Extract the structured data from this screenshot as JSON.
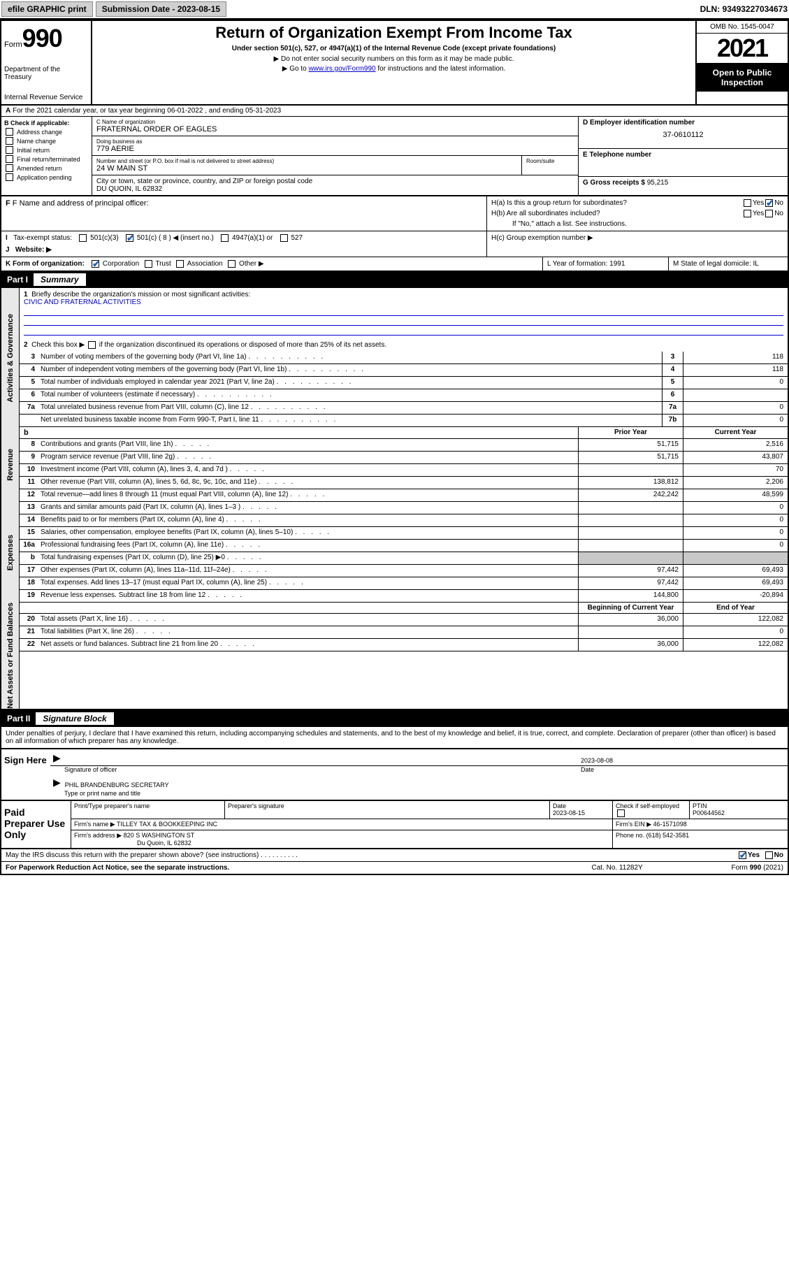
{
  "topbar": {
    "efile": "efile GRAPHIC print",
    "sub_label": "Submission Date - 2023-08-15",
    "dln_label": "DLN: 93493227034673"
  },
  "header": {
    "form_word": "Form",
    "form_num": "990",
    "dept": "Department of the Treasury",
    "irs": "Internal Revenue Service",
    "title": "Return of Organization Exempt From Income Tax",
    "subtitle": "Under section 501(c), 527, or 4947(a)(1) of the Internal Revenue Code (except private foundations)",
    "note1": "▶ Do not enter social security numbers on this form as it may be made public.",
    "note2_pre": "▶ Go to ",
    "note2_link": "www.irs.gov/Form990",
    "note2_post": " for instructions and the latest information.",
    "omb": "OMB No. 1545-0047",
    "year": "2021",
    "open": "Open to Public Inspection"
  },
  "row_a": "For the 2021 calendar year, or tax year beginning 06-01-2022    , and ending 05-31-2023",
  "section_b": {
    "label": "B Check if applicable:",
    "items": [
      "Address change",
      "Name change",
      "Initial return",
      "Final return/terminated",
      "Amended return",
      "Application pending"
    ]
  },
  "section_c": {
    "name_lab": "C Name of organization",
    "name": "FRATERNAL ORDER OF EAGLES",
    "dba_lab": "Doing business as",
    "dba": "779 AERIE",
    "street_lab": "Number and street (or P.O. box if mail is not delivered to street address)",
    "room_lab": "Room/suite",
    "street": "24 W MAIN ST",
    "city_lab": "City or town, state or province, country, and ZIP or foreign postal code",
    "city": "DU QUOIN, IL  62832"
  },
  "section_d": {
    "lab": "D Employer identification number",
    "val": "37-0610112"
  },
  "section_e": {
    "lab": "E Telephone number",
    "val": ""
  },
  "section_g": {
    "lab": "G Gross receipts $",
    "val": "95,215"
  },
  "section_f": {
    "lab": "F  Name and address of principal officer:",
    "val": ""
  },
  "section_h": {
    "ha": "H(a)  Is this a group return for subordinates?",
    "hb": "H(b)  Are all subordinates included?",
    "hb_note": "If \"No,\" attach a list. See instructions.",
    "hc": "H(c)  Group exemption number ▶",
    "yes": "Yes",
    "no": "No"
  },
  "tax_status": {
    "lab": "Tax-exempt status:",
    "o1": "501(c)(3)",
    "o2": "501(c) ( 8 ) ◀ (insert no.)",
    "o3": "4947(a)(1) or",
    "o4": "527"
  },
  "website": {
    "lab": "Website: ▶",
    "val": ""
  },
  "section_k": {
    "lab": "K Form of organization:",
    "o1": "Corporation",
    "o2": "Trust",
    "o3": "Association",
    "o4": "Other ▶"
  },
  "section_l": {
    "lab": "L Year of formation: 1991"
  },
  "section_m": {
    "lab": "M State of legal domicile: IL"
  },
  "part1": {
    "num": "Part I",
    "title": "Summary"
  },
  "side_labels": {
    "gov": "Activities & Governance",
    "rev": "Revenue",
    "exp": "Expenses",
    "net": "Net Assets or Fund Balances"
  },
  "q1": {
    "n": "1",
    "lab": "Briefly describe the organization's mission or most significant activities:",
    "val": "CIVIC AND FRATERNAL ACTIVITIES"
  },
  "q2": {
    "n": "2",
    "lab": "Check this box ▶",
    "post": " if the organization discontinued its operations or disposed of more than 25% of its net assets."
  },
  "lines_gov": [
    {
      "n": "3",
      "d": "Number of voting members of the governing body (Part VI, line 1a)",
      "box": "3",
      "v": "118"
    },
    {
      "n": "4",
      "d": "Number of independent voting members of the governing body (Part VI, line 1b)",
      "box": "4",
      "v": "118"
    },
    {
      "n": "5",
      "d": "Total number of individuals employed in calendar year 2021 (Part V, line 2a)",
      "box": "5",
      "v": "0"
    },
    {
      "n": "6",
      "d": "Total number of volunteers (estimate if necessary)",
      "box": "6",
      "v": ""
    },
    {
      "n": "7a",
      "d": "Total unrelated business revenue from Part VIII, column (C), line 12",
      "box": "7a",
      "v": "0"
    },
    {
      "n": "",
      "d": "Net unrelated business taxable income from Form 990-T, Part I, line 11",
      "box": "7b",
      "v": "0"
    }
  ],
  "col_hdr": {
    "b": "b",
    "py": "Prior Year",
    "cy": "Current Year"
  },
  "lines_rev": [
    {
      "n": "8",
      "d": "Contributions and grants (Part VIII, line 1h)",
      "py": "51,715",
      "cy": "2,516"
    },
    {
      "n": "9",
      "d": "Program service revenue (Part VIII, line 2g)",
      "py": "51,715",
      "cy": "43,807"
    },
    {
      "n": "10",
      "d": "Investment income (Part VIII, column (A), lines 3, 4, and 7d )",
      "py": "",
      "cy": "70"
    },
    {
      "n": "11",
      "d": "Other revenue (Part VIII, column (A), lines 5, 6d, 8c, 9c, 10c, and 11e)",
      "py": "138,812",
      "cy": "2,206"
    },
    {
      "n": "12",
      "d": "Total revenue—add lines 8 through 11 (must equal Part VIII, column (A), line 12)",
      "py": "242,242",
      "cy": "48,599"
    }
  ],
  "lines_exp": [
    {
      "n": "13",
      "d": "Grants and similar amounts paid (Part IX, column (A), lines 1–3 )",
      "py": "",
      "cy": "0"
    },
    {
      "n": "14",
      "d": "Benefits paid to or for members (Part IX, column (A), line 4)",
      "py": "",
      "cy": "0"
    },
    {
      "n": "15",
      "d": "Salaries, other compensation, employee benefits (Part IX, column (A), lines 5–10)",
      "py": "",
      "cy": "0"
    },
    {
      "n": "16a",
      "d": "Professional fundraising fees (Part IX, column (A), line 11e)",
      "py": "",
      "cy": "0"
    },
    {
      "n": "b",
      "d": "Total fundraising expenses (Part IX, column (D), line 25) ▶0",
      "py": "grey",
      "cy": "grey"
    },
    {
      "n": "17",
      "d": "Other expenses (Part IX, column (A), lines 11a–11d, 11f–24e)",
      "py": "97,442",
      "cy": "69,493"
    },
    {
      "n": "18",
      "d": "Total expenses. Add lines 13–17 (must equal Part IX, column (A), line 25)",
      "py": "97,442",
      "cy": "69,493"
    },
    {
      "n": "19",
      "d": "Revenue less expenses. Subtract line 18 from line 12",
      "py": "144,800",
      "cy": "-20,894"
    }
  ],
  "col_hdr2": {
    "py": "Beginning of Current Year",
    "cy": "End of Year"
  },
  "lines_net": [
    {
      "n": "20",
      "d": "Total assets (Part X, line 16)",
      "py": "36,000",
      "cy": "122,082"
    },
    {
      "n": "21",
      "d": "Total liabilities (Part X, line 26)",
      "py": "",
      "cy": "0"
    },
    {
      "n": "22",
      "d": "Net assets or fund balances. Subtract line 21 from line 20",
      "py": "36,000",
      "cy": "122,082"
    }
  ],
  "part2": {
    "num": "Part II",
    "title": "Signature Block"
  },
  "penalty": "Under penalties of perjury, I declare that I have examined this return, including accompanying schedules and statements, and to the best of my knowledge and belief, it is true, correct, and complete. Declaration of preparer (other than officer) is based on all information of which preparer has any knowledge.",
  "sign": {
    "here": "Sign Here",
    "sig_lab": "Signature of officer",
    "date_lab": "Date",
    "date": "2023-08-08",
    "name": "PHIL BRANDENBURG  SECRETARY",
    "name_lab": "Type or print name and title"
  },
  "paid": {
    "title": "Paid Preparer Use Only",
    "h1": "Print/Type preparer's name",
    "h2": "Preparer's signature",
    "h3": "Date",
    "h3v": "2023-08-15",
    "h4": "Check          if self-employed",
    "h5": "PTIN",
    "h5v": "P00644562",
    "firm_name_lab": "Firm's name     ▶",
    "firm_name": "TILLEY TAX & BOOKKEEPING INC",
    "firm_ein_lab": "Firm's EIN ▶",
    "firm_ein": "46-1571098",
    "firm_addr_lab": "Firm's address ▶",
    "firm_addr": "820 S WASHINGTON ST",
    "firm_city": "Du Quoin, IL  62832",
    "phone_lab": "Phone no.",
    "phone": "(618) 542-3581"
  },
  "discuss": "May the IRS discuss this return with the preparer shown above? (see instructions)",
  "footer": {
    "pra": "For Paperwork Reduction Act Notice, see the separate instructions.",
    "cat": "Cat. No. 11282Y",
    "form": "Form 990 (2021)"
  }
}
